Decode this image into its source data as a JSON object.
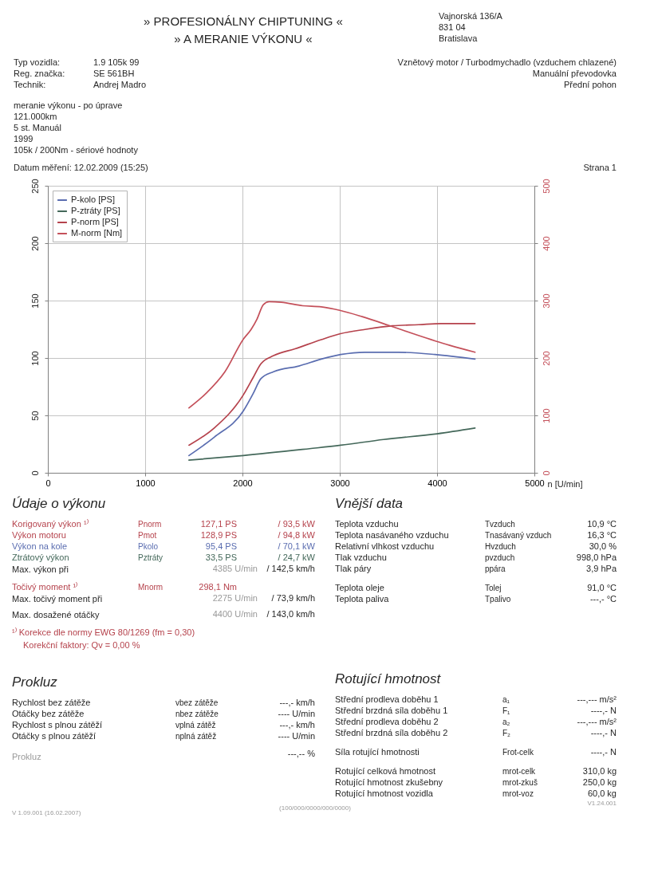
{
  "chart_data": {
    "type": "line",
    "xlabel": "n [U/min]",
    "xlim": [
      0,
      5000
    ],
    "xticks": [
      0,
      1000,
      2000,
      3000,
      4000,
      5000
    ],
    "ylim": [
      0,
      250
    ],
    "yticks": [
      0,
      50,
      100,
      150,
      200,
      250
    ],
    "y2lim": [
      0,
      500
    ],
    "y2ticks": [
      0,
      100,
      200,
      300,
      400,
      500
    ],
    "grid": true,
    "legend": "top left",
    "series": [
      {
        "name": "P-kolo [PS]",
        "color": "#5a6db0",
        "x": [
          1450,
          1710,
          2010,
          2110,
          2190,
          2320,
          2580,
          2810,
          3010,
          3260,
          3600,
          3980,
          4390
        ],
        "values": [
          15,
          31,
          54,
          69,
          82,
          88,
          93,
          99,
          103,
          105,
          105,
          103,
          99
        ]
      },
      {
        "name": "P-ztráty [PS]",
        "color": "#44685a",
        "x": [
          1450,
          2010,
          2690,
          3010,
          3450,
          4000,
          4390
        ],
        "values": [
          11,
          15,
          21,
          24,
          29,
          34,
          39
        ]
      },
      {
        "name": "P-norm [PS]",
        "color": "#b5424c",
        "x": [
          1450,
          1710,
          2010,
          2110,
          2190,
          2320,
          2540,
          2810,
          3000,
          3270,
          3540,
          3810,
          4040,
          4390
        ],
        "values": [
          24,
          39,
          68,
          83,
          95,
          102,
          108,
          116,
          121,
          125,
          128,
          129,
          130,
          130
        ]
      },
      {
        "name": "M-norm [Nm]",
        "color": "#c4505a",
        "axis": "y2",
        "x": [
          1450,
          1630,
          1820,
          2010,
          2090,
          2150,
          2215,
          2275,
          2400,
          2620,
          2810,
          3000,
          3230,
          3500,
          3760,
          4130,
          4390
        ],
        "values": [
          113,
          139,
          176,
          233,
          250,
          268,
          293,
          298,
          297,
          291,
          289,
          283,
          272,
          257,
          242,
          222,
          210
        ]
      }
    ],
    "annotations": [
      "» PROFESIONÁLNY CHIPTUNING «",
      "» A MERANIE VÝKONU «",
      "Vajnorská 136/A",
      "831 04",
      "Bratislava",
      "Typ vozidla:",
      "1.9 105k 99",
      "Reg. značka:",
      "SE 561BH",
      "Technik:",
      "Andrej Madro",
      "Vznětový motor / Turbodmychadlo (vzduchem chlazené)",
      "Manuální převodovka",
      "Přední pohon",
      "meranie výkonu - po úprave",
      "121.000km",
      "5 st. Manuál",
      "1999",
      "105k / 200Nm - sériové hodnoty",
      "Datum měření: 12.02.2009 (15:25)",
      "Strana 1",
      "Údaje o výkonu",
      "Korigovaný výkon ¹⁾",
      "Pnorm",
      "127,1 PS",
      "/ 93,5 kW",
      "Výkon motoru",
      "Pmot",
      "128,9 PS",
      "/ 94,8 kW",
      "Výkon na kole",
      "Pkolo",
      "95,4 PS",
      "/ 70,1 kW",
      "Ztrátový výkon",
      "Pztráty",
      "33,5 PS",
      "/ 24,7 kW",
      "Max. výkon při",
      "4385 U/min",
      "/ 142,5 km/h",
      "Točivý moment ¹⁾",
      "Mnorm",
      "298,1 Nm",
      "Max. točivý moment při",
      "2275 U/min",
      "/ 73,9 km/h",
      "Max. dosažené otáčky",
      "4400 U/min",
      "/ 143,0 km/h",
      "¹⁾ Korekce dle normy EWG 80/1269 (fm = 0,30)",
      "Korekční faktory: Qv = 0,00 %",
      "Vnější data",
      "Teplota vzduchu",
      "Tvzduch",
      "10,9 °C",
      "Teplota nasávaného vzduchu",
      "Tnasávaný vzduch",
      "16,3 °C",
      "Relativní vlhkost vzduchu",
      "Hvzduch",
      "30,0 %",
      "Tlak vzduchu",
      "pvzduch",
      "998,0 hPa",
      "Tlak páry",
      "ppára",
      "3,9 hPa",
      "Teplota oleje",
      "Tolej",
      "91,0 °C",
      "Teplota paliva",
      "Tpalivo",
      "---,- °C",
      "Prokluz",
      "Rychlost bez zátěže",
      "vbez zátěže",
      "---,- km/h",
      "Otáčky bez zátěže",
      "nbez zátěže",
      "---- U/min",
      "Rychlost s plnou zátěží",
      "vplná zátěž",
      "---,- km/h",
      "Otáčky s plnou zátěží",
      "nplná zátěž",
      "---- U/min",
      "Prokluz",
      "---,-- %",
      "Rotující hmotnost",
      "Střední prodleva doběhu 1",
      "a₁",
      "---,--- m/s²",
      "Střední brzdná síla doběhu 1",
      "F₁",
      "----,- N",
      "Střední prodleva doběhu 2",
      "a₂",
      "---,--- m/s²",
      "Střední brzdná síla doběhu 2",
      "F₂",
      "----,- N",
      "Síla rotující hmotnosti",
      "Frot-celk",
      "----,- N",
      "Rotující celková hmotnost",
      "mrot-celk",
      "310,0 kg",
      "Rotující hmotnost zkušebny",
      "mrot-zkuš",
      "250,0 kg",
      "Rotující hmotnost vozidla",
      "mrot-voz",
      "60,0 kg",
      "V 1.09.001 (16.02.2007)",
      "(100/000/0000/000/0000)",
      "V1.24.001"
    ]
  }
}
